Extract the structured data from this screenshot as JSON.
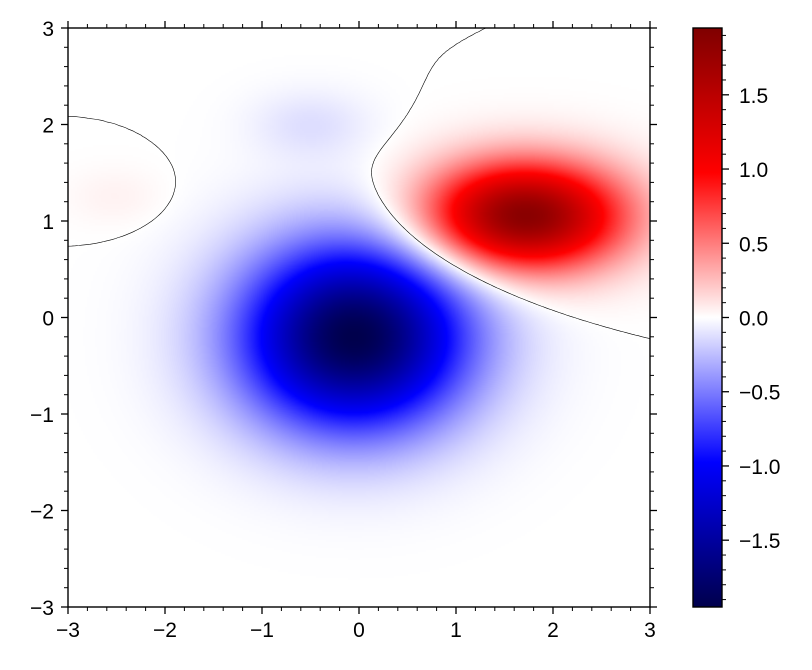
{
  "chart_data": {
    "type": "heatmap",
    "title": "",
    "xlabel": "",
    "ylabel": "",
    "xlim": [
      -3,
      3
    ],
    "ylim": [
      -3,
      3
    ],
    "x_ticks": [
      -3,
      -2,
      -1,
      0,
      1,
      2,
      3
    ],
    "x_tick_labels": [
      "−3",
      "−2",
      "−1",
      "0",
      "1",
      "2",
      "3"
    ],
    "y_ticks": [
      -3,
      -2,
      -1,
      0,
      1,
      2,
      3
    ],
    "y_tick_labels": [
      "−3",
      "−2",
      "−1",
      "0",
      "1",
      "2",
      "3"
    ],
    "colormap": "seismic",
    "colormap_stops": [
      "#00004c",
      "#0000ff",
      "#ffffff",
      "#ff0000",
      "#7f0000"
    ],
    "clim": [
      -1.95,
      1.95
    ],
    "features": [
      {
        "kind": "minimum",
        "x": -0.05,
        "y": -0.2,
        "value": -1.95
      },
      {
        "kind": "maximum",
        "x": 1.7,
        "y": 1.05,
        "value": 1.9
      },
      {
        "kind": "local-minimum",
        "x": -0.5,
        "y": 2.0,
        "value": -0.12
      },
      {
        "kind": "local-maximum",
        "x": -2.5,
        "y": 1.25,
        "value": 0.05
      }
    ],
    "contour_levels": [
      0
    ],
    "colorbar": {
      "ticks": [
        -1.5,
        -1.0,
        -0.5,
        0.0,
        0.5,
        1.0,
        1.5
      ],
      "tick_labels": [
        "−1.5",
        "−1.0",
        "−0.5",
        "0.0",
        "0.5",
        "1.0",
        "1.5"
      ]
    },
    "grid": false,
    "legend": "none"
  }
}
